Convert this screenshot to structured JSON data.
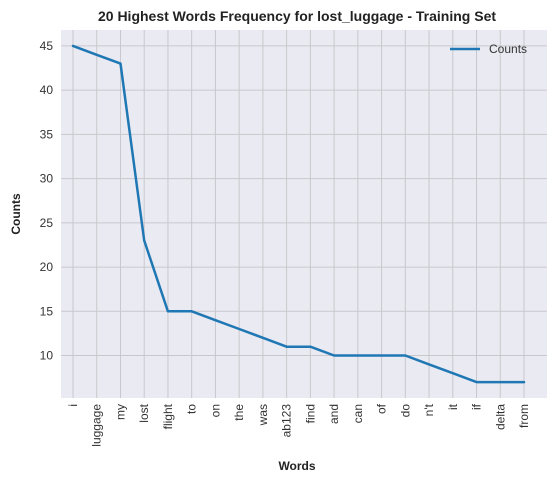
{
  "chart_data": {
    "type": "line",
    "title": "20 Highest Words Frequency for lost_luggage - Training Set",
    "xlabel": "Words",
    "ylabel": "Counts",
    "categories": [
      "i",
      "luggage",
      "my",
      "lost",
      "flight",
      "to",
      "on",
      "the",
      "was",
      "ab123",
      "find",
      "and",
      "can",
      "of",
      "do",
      "n't",
      "it",
      "if",
      "delta",
      "from"
    ],
    "series": [
      {
        "name": "Counts",
        "color": "#1f77b4",
        "values": [
          45,
          44,
          43,
          23,
          15,
          15,
          14,
          13,
          12,
          11,
          11,
          10,
          10,
          10,
          10,
          9,
          8,
          7,
          7,
          7
        ]
      }
    ],
    "ylim": [
      5.2,
      46.8
    ],
    "yticks": [
      10,
      15,
      20,
      25,
      30,
      35,
      40,
      45
    ],
    "grid": true,
    "legend": "top-right",
    "background": "#eaeaf2"
  }
}
